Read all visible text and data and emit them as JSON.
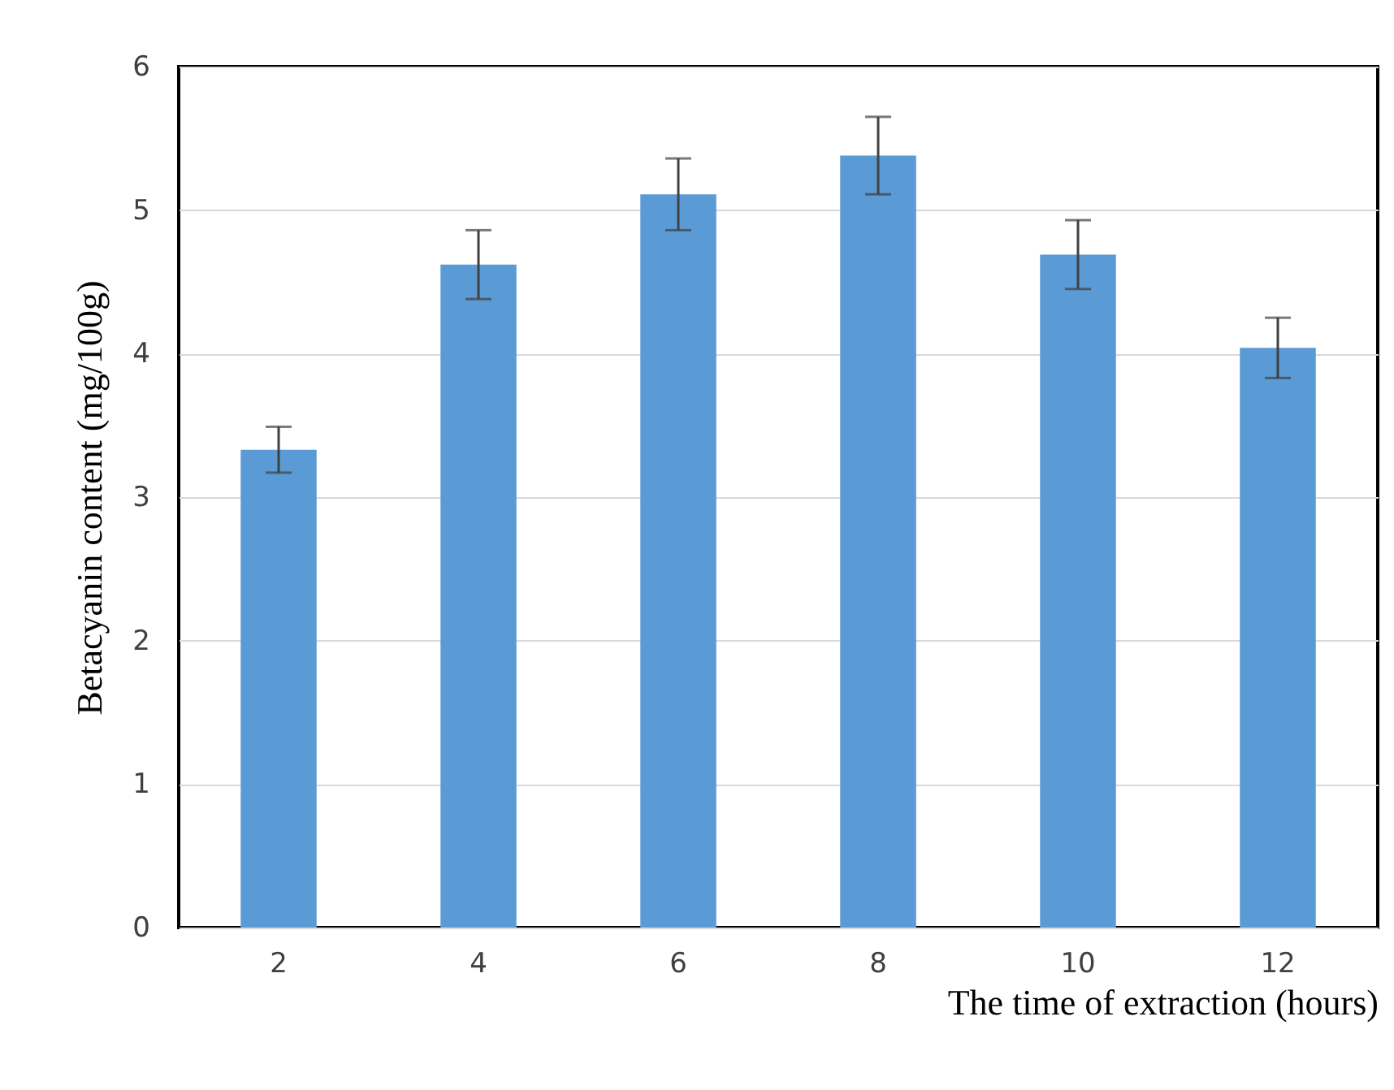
{
  "chart_data": {
    "type": "bar",
    "xlabel": "The time of extraction (hours)",
    "ylabel": "Betacyanin content (mg/100g)",
    "categories": [
      "2",
      "4",
      "6",
      "8",
      "10",
      "12"
    ],
    "values": [
      3.33,
      4.62,
      5.11,
      5.38,
      4.69,
      4.04
    ],
    "errors": [
      0.16,
      0.24,
      0.25,
      0.27,
      0.24,
      0.21
    ],
    "color": "#5b9bd5",
    "ylim": [
      0,
      6
    ],
    "yticks": [
      0,
      1,
      2,
      3,
      4,
      5,
      6
    ],
    "grid": "y"
  }
}
